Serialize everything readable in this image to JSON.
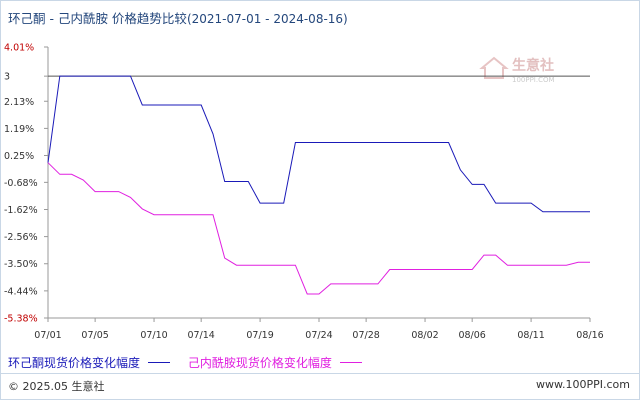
{
  "title": {
    "main": "环己酮 - 己内酰胺 价格趋势比较",
    "range": "(2021-07-01 - 2024-08-16)"
  },
  "watermark": {
    "name": "生意社",
    "url": "100PPI.COM"
  },
  "footer": {
    "left": "© 2025.05 生意社",
    "right": "www.100PPI.com"
  },
  "colors": {
    "series1": "#1a1ab8",
    "series2": "#e020e0",
    "axis": "#999999",
    "ref_line": "#555555",
    "red_tick": "#c00000"
  },
  "chart_data": {
    "type": "line",
    "x": [
      "07/01",
      "07/02",
      "07/03",
      "07/04",
      "07/05",
      "07/06",
      "07/07",
      "07/08",
      "07/09",
      "07/10",
      "07/11",
      "07/12",
      "07/13",
      "07/14",
      "07/15",
      "07/16",
      "07/17",
      "07/18",
      "07/19",
      "07/20",
      "07/21",
      "07/22",
      "07/23",
      "07/24",
      "07/25",
      "07/26",
      "07/27",
      "07/28",
      "07/29",
      "07/30",
      "07/31",
      "08/01",
      "08/02",
      "08/03",
      "08/04",
      "08/05",
      "08/06",
      "08/07",
      "08/08",
      "08/09",
      "08/10",
      "08/11",
      "08/12",
      "08/13",
      "08/14",
      "08/15",
      "08/16"
    ],
    "x_tick_labels": [
      "07/01",
      "07/05",
      "07/10",
      "07/14",
      "07/19",
      "07/24",
      "07/28",
      "08/02",
      "08/06",
      "08/11",
      "08/16"
    ],
    "y_ticks": [
      "4.01%",
      "3",
      "2.13%",
      "1.19%",
      "0.25%",
      "-0.68%",
      "-1.62%",
      "-2.56%",
      "-3.50%",
      "-4.44%",
      "-5.38%"
    ],
    "y_tick_values": [
      4.01,
      3.0,
      2.13,
      1.19,
      0.25,
      -0.68,
      -1.62,
      -2.56,
      -3.5,
      -4.44,
      -5.38
    ],
    "ylim": [
      -5.38,
      4.01
    ],
    "reference_line": 3.0,
    "series": [
      {
        "name": "环己酮现货价格变化幅度",
        "values": [
          0.0,
          3.0,
          3.0,
          3.0,
          3.0,
          3.0,
          3.0,
          3.0,
          2.0,
          2.0,
          2.0,
          2.0,
          2.0,
          2.0,
          1.0,
          -0.65,
          -0.65,
          -0.65,
          -1.4,
          -1.4,
          -1.4,
          0.7,
          0.7,
          0.7,
          0.7,
          0.7,
          0.7,
          0.7,
          0.7,
          0.7,
          0.7,
          0.7,
          0.7,
          0.7,
          0.7,
          -0.25,
          -0.75,
          -0.75,
          -1.4,
          -1.4,
          -1.4,
          -1.4,
          -1.7,
          -1.7,
          -1.7,
          -1.7,
          -1.7
        ]
      },
      {
        "name": "己内酰胺现货价格变化幅度",
        "values": [
          0.0,
          -0.4,
          -0.4,
          -0.6,
          -1.0,
          -1.0,
          -1.0,
          -1.2,
          -1.6,
          -1.8,
          -1.8,
          -1.8,
          -1.8,
          -1.8,
          -1.8,
          -3.3,
          -3.55,
          -3.55,
          -3.55,
          -3.55,
          -3.55,
          -3.55,
          -4.55,
          -4.55,
          -4.2,
          -4.2,
          -4.2,
          -4.2,
          -4.2,
          -3.7,
          -3.7,
          -3.7,
          -3.7,
          -3.7,
          -3.7,
          -3.7,
          -3.7,
          -3.2,
          -3.2,
          -3.55,
          -3.55,
          -3.55,
          -3.55,
          -3.55,
          -3.55,
          -3.45,
          -3.45
        ]
      }
    ],
    "grid": false,
    "legend_position": "bottom-left"
  }
}
